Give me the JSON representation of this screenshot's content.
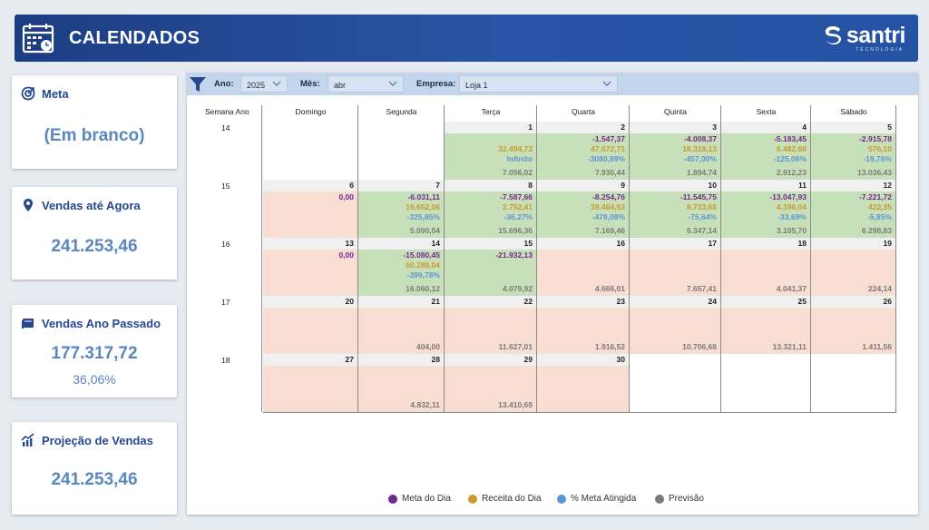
{
  "header": {
    "title": "CALENDADOS",
    "logo_name": "santri",
    "logo_sub": "TECNOLOGIA"
  },
  "cards": {
    "meta": {
      "title": "Meta",
      "value": "(Em branco)"
    },
    "vendas_agora": {
      "title": "Vendas até Agora",
      "value": "241.253,46"
    },
    "vendas_passado": {
      "title": "Vendas Ano Passado",
      "value": "177.317,72",
      "pct": "36,06%"
    },
    "projecao": {
      "title": "Projeção de Vendas",
      "value": "241.253,46"
    }
  },
  "filters": {
    "ano_label": "Ano:",
    "ano_value": "2025",
    "mes_label": "Mês:",
    "mes_value": "abr",
    "empresa_label": "Empresa:",
    "empresa_value": "Loja 1"
  },
  "calendar": {
    "week_col_label": "Semana Ano",
    "days": [
      "Domingo",
      "Segunda",
      "Terça",
      "Quarta",
      "Quinta",
      "Sexta",
      "Sábado"
    ],
    "weeks": [
      "14",
      "15",
      "16",
      "17",
      "18"
    ],
    "cells": [
      {
        "week": 0,
        "col": 2,
        "day": "1",
        "bg": "green",
        "meta": "",
        "rec": "32.494,73",
        "pct": "Infinito",
        "prev": "7.056,02"
      },
      {
        "week": 0,
        "col": 3,
        "day": "2",
        "bg": "green",
        "meta": "-1.547,37",
        "rec": "47.672,71",
        "pct": "-3080,89%",
        "prev": "7.930,44"
      },
      {
        "week": 0,
        "col": 4,
        "day": "3",
        "bg": "green",
        "meta": "-4.008,37",
        "rec": "18.318,13",
        "pct": "-457,00%",
        "prev": "1.894,74"
      },
      {
        "week": 0,
        "col": 5,
        "day": "4",
        "bg": "green",
        "meta": "-5.183,45",
        "rec": "6.482,68",
        "pct": "-125,06%",
        "prev": "2.912,23"
      },
      {
        "week": 0,
        "col": 6,
        "day": "5",
        "bg": "green",
        "meta": "-2.915,78",
        "rec": "576,10",
        "pct": "-19,76%",
        "prev": "13.036,43"
      },
      {
        "week": 1,
        "col": 0,
        "day": "6",
        "bg": "salmon",
        "meta": "0,00",
        "rec": "",
        "pct": "",
        "prev": ""
      },
      {
        "week": 1,
        "col": 1,
        "day": "7",
        "bg": "green",
        "meta": "-6.031,11",
        "rec": "19.652,06",
        "pct": "-325,85%",
        "prev": "5.090,54"
      },
      {
        "week": 1,
        "col": 2,
        "day": "8",
        "bg": "green",
        "meta": "-7.587,66",
        "rec": "2.752,41",
        "pct": "-36,27%",
        "prev": "15.696,36"
      },
      {
        "week": 1,
        "col": 3,
        "day": "9",
        "bg": "green",
        "meta": "-8.254,76",
        "rec": "39.464,53",
        "pct": "-478,08%",
        "prev": "7.169,46"
      },
      {
        "week": 1,
        "col": 4,
        "day": "10",
        "bg": "green",
        "meta": "-11.545,75",
        "rec": "8.733,68",
        "pct": "-75,64%",
        "prev": "6.347,14"
      },
      {
        "week": 1,
        "col": 5,
        "day": "11",
        "bg": "green",
        "meta": "-13.047,93",
        "rec": "4.396,04",
        "pct": "-33,69%",
        "prev": "3.105,70"
      },
      {
        "week": 1,
        "col": 6,
        "day": "12",
        "bg": "green",
        "meta": "-7.221,72",
        "rec": "422,35",
        "pct": "-5,85%",
        "prev": "6.298,83"
      },
      {
        "week": 2,
        "col": 0,
        "day": "13",
        "bg": "salmon",
        "meta": "0,00",
        "rec": "",
        "pct": "",
        "prev": ""
      },
      {
        "week": 2,
        "col": 1,
        "day": "14",
        "bg": "green",
        "meta": "-15.080,45",
        "rec": "60.288,04",
        "pct": "-399,78%",
        "prev": "16.060,12"
      },
      {
        "week": 2,
        "col": 2,
        "day": "15",
        "bg": "green",
        "meta": "-21.932,13",
        "rec": "",
        "pct": "",
        "prev": "4.079,92"
      },
      {
        "week": 2,
        "col": 3,
        "day": "16",
        "bg": "salmon",
        "meta": "",
        "rec": "",
        "pct": "",
        "prev": "4.666,01"
      },
      {
        "week": 2,
        "col": 4,
        "day": "17",
        "bg": "salmon",
        "meta": "",
        "rec": "",
        "pct": "",
        "prev": "7.657,41"
      },
      {
        "week": 2,
        "col": 5,
        "day": "18",
        "bg": "salmon",
        "meta": "",
        "rec": "",
        "pct": "",
        "prev": "4.041,37"
      },
      {
        "week": 2,
        "col": 6,
        "day": "19",
        "bg": "salmon",
        "meta": "",
        "rec": "",
        "pct": "",
        "prev": "224,14"
      },
      {
        "week": 3,
        "col": 0,
        "day": "20",
        "bg": "salmon",
        "meta": "",
        "rec": "",
        "pct": "",
        "prev": ""
      },
      {
        "week": 3,
        "col": 1,
        "day": "21",
        "bg": "salmon",
        "meta": "",
        "rec": "",
        "pct": "",
        "prev": "404,00"
      },
      {
        "week": 3,
        "col": 2,
        "day": "22",
        "bg": "salmon",
        "meta": "",
        "rec": "",
        "pct": "",
        "prev": "11.627,01"
      },
      {
        "week": 3,
        "col": 3,
        "day": "23",
        "bg": "salmon",
        "meta": "",
        "rec": "",
        "pct": "",
        "prev": "1.916,52"
      },
      {
        "week": 3,
        "col": 4,
        "day": "24",
        "bg": "salmon",
        "meta": "",
        "rec": "",
        "pct": "",
        "prev": "10.706,68"
      },
      {
        "week": 3,
        "col": 5,
        "day": "25",
        "bg": "salmon",
        "meta": "",
        "rec": "",
        "pct": "",
        "prev": "13.321,11"
      },
      {
        "week": 3,
        "col": 6,
        "day": "26",
        "bg": "salmon",
        "meta": "",
        "rec": "",
        "pct": "",
        "prev": "1.411,56"
      },
      {
        "week": 4,
        "col": 0,
        "day": "27",
        "bg": "salmon",
        "meta": "",
        "rec": "",
        "pct": "",
        "prev": ""
      },
      {
        "week": 4,
        "col": 1,
        "day": "28",
        "bg": "salmon",
        "meta": "",
        "rec": "",
        "pct": "",
        "prev": "4.832,11"
      },
      {
        "week": 4,
        "col": 2,
        "day": "29",
        "bg": "salmon",
        "meta": "",
        "rec": "",
        "pct": "",
        "prev": "13.410,69"
      },
      {
        "week": 4,
        "col": 3,
        "day": "30",
        "bg": "salmon",
        "meta": "",
        "rec": "",
        "pct": "",
        "prev": ""
      }
    ]
  },
  "legend": [
    {
      "label": "Meta do Dia",
      "color": "#70298f"
    },
    {
      "label": "Receita do Dia",
      "color": "#c79a2b"
    },
    {
      "label": "% Meta Atingida",
      "color": "#5b95d2"
    },
    {
      "label": "Previsão",
      "color": "#7a7a7a"
    }
  ],
  "colors": {
    "accent": "#25488e",
    "green_cell": "#c8e0b9",
    "salmon_cell": "#f7ddd2"
  }
}
